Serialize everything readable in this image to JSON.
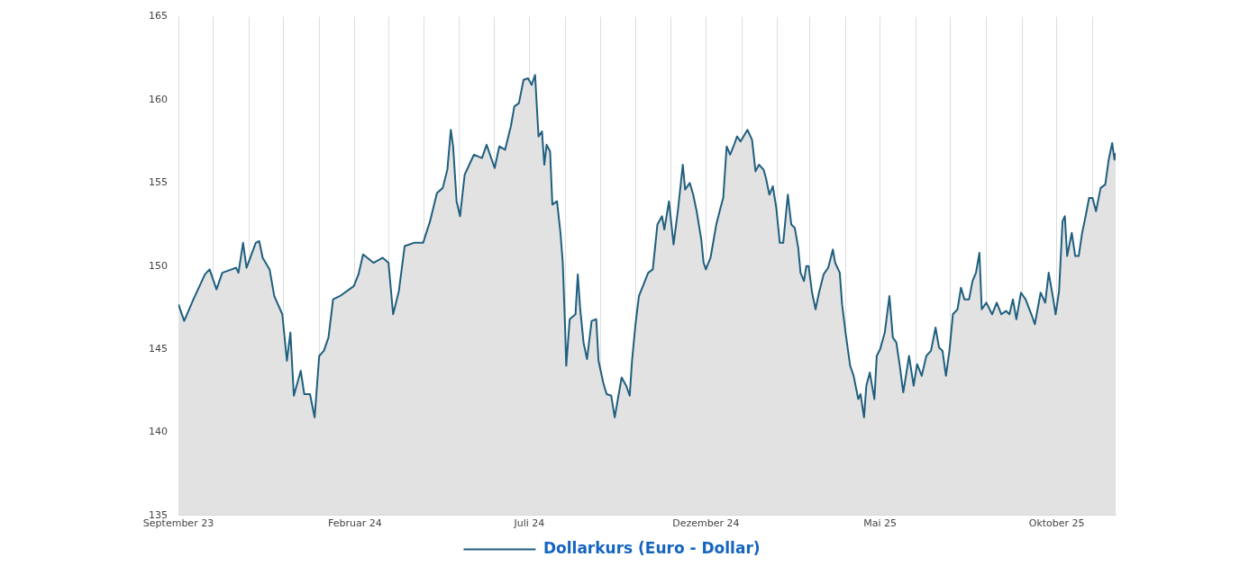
{
  "chart_data": {
    "type": "area",
    "x": [
      "2023-09-01",
      "2023-09-06",
      "2023-09-14",
      "2023-09-24",
      "2023-09-28",
      "2023-10-04",
      "2023-10-09",
      "2023-10-21",
      "2023-10-23",
      "2023-10-27",
      "2023-10-30",
      "2023-11-07",
      "2023-11-10",
      "2023-11-13",
      "2023-11-19",
      "2023-11-23",
      "2023-11-30",
      "2023-12-04",
      "2023-12-07",
      "2023-12-10",
      "2023-12-16",
      "2023-12-19",
      "2023-12-24",
      "2023-12-28",
      "2024-01-01",
      "2024-01-05",
      "2024-01-09",
      "2024-01-13",
      "2024-01-19",
      "2024-01-31",
      "2024-02-04",
      "2024-02-08",
      "2024-02-17",
      "2024-02-25",
      "2024-03-01",
      "2024-03-05",
      "2024-03-10",
      "2024-03-15",
      "2024-03-23",
      "2024-03-31",
      "2024-04-06",
      "2024-04-12",
      "2024-04-17",
      "2024-04-21",
      "2024-04-24",
      "2024-04-26",
      "2024-04-29",
      "2024-05-02",
      "2024-05-06",
      "2024-05-10",
      "2024-05-14",
      "2024-05-21",
      "2024-05-25",
      "2024-06-01",
      "2024-06-05",
      "2024-06-10",
      "2024-06-15",
      "2024-06-18",
      "2024-06-22",
      "2024-06-26",
      "2024-06-30",
      "2024-07-03",
      "2024-07-06",
      "2024-07-09",
      "2024-07-12",
      "2024-07-14",
      "2024-07-16",
      "2024-07-19",
      "2024-07-21",
      "2024-07-25",
      "2024-07-28",
      "2024-07-30",
      "2024-08-01",
      "2024-08-02",
      "2024-08-05",
      "2024-08-10",
      "2024-08-12",
      "2024-08-14",
      "2024-08-17",
      "2024-08-20",
      "2024-08-24",
      "2024-08-28",
      "2024-08-30",
      "2024-09-03",
      "2024-09-06",
      "2024-09-10",
      "2024-09-13",
      "2024-09-15",
      "2024-09-19",
      "2024-09-23",
      "2024-09-26",
      "2024-09-28",
      "2024-10-01",
      "2024-10-04",
      "2024-10-08",
      "2024-10-12",
      "2024-10-16",
      "2024-10-20",
      "2024-10-24",
      "2024-10-26",
      "2024-10-30",
      "2024-11-03",
      "2024-11-07",
      "2024-11-11",
      "2024-11-13",
      "2024-11-17",
      "2024-11-20",
      "2024-11-23",
      "2024-11-27",
      "2024-11-29",
      "2024-12-01",
      "2024-12-05",
      "2024-12-10",
      "2024-12-14",
      "2024-12-16",
      "2024-12-19",
      "2024-12-22",
      "2024-12-26",
      "2024-12-28",
      "2024-12-31",
      "2025-01-06",
      "2025-01-10",
      "2025-01-13",
      "2025-01-16",
      "2025-01-20",
      "2025-01-22",
      "2025-01-25",
      "2025-01-28",
      "2025-01-31",
      "2025-02-03",
      "2025-02-06",
      "2025-02-10",
      "2025-02-13",
      "2025-02-16",
      "2025-02-19",
      "2025-02-21",
      "2025-02-24",
      "2025-02-26",
      "2025-02-28",
      "2025-03-03",
      "2025-03-06",
      "2025-03-09",
      "2025-03-13",
      "2025-03-17",
      "2025-03-21",
      "2025-03-23",
      "2025-03-27",
      "2025-03-29",
      "2025-04-01",
      "2025-04-05",
      "2025-04-08",
      "2025-04-12",
      "2025-04-14",
      "2025-04-17",
      "2025-04-19",
      "2025-04-22",
      "2025-04-26",
      "2025-04-28",
      "2025-05-01",
      "2025-05-05",
      "2025-05-09",
      "2025-05-12",
      "2025-05-15",
      "2025-05-18",
      "2025-05-21",
      "2025-05-24",
      "2025-05-26",
      "2025-05-30",
      "2025-06-02",
      "2025-06-06",
      "2025-06-10",
      "2025-06-14",
      "2025-06-18",
      "2025-06-21",
      "2025-06-24",
      "2025-06-27",
      "2025-06-30",
      "2025-07-03",
      "2025-07-07",
      "2025-07-10",
      "2025-07-13",
      "2025-07-17",
      "2025-07-20",
      "2025-07-23",
      "2025-07-26",
      "2025-07-28",
      "2025-08-01",
      "2025-08-06",
      "2025-08-10",
      "2025-08-14",
      "2025-08-18",
      "2025-08-21",
      "2025-08-24",
      "2025-08-27",
      "2025-08-31",
      "2025-09-04",
      "2025-09-09",
      "2025-09-12",
      "2025-09-17",
      "2025-09-21",
      "2025-09-24",
      "2025-09-28",
      "2025-09-30",
      "2025-10-03",
      "2025-10-06",
      "2025-10-08",
      "2025-10-10",
      "2025-10-14",
      "2025-10-17",
      "2025-10-20",
      "2025-10-23",
      "2025-10-26",
      "2025-10-29",
      "2025-11-01",
      "2025-11-04",
      "2025-11-08",
      "2025-11-12",
      "2025-11-15",
      "2025-11-18",
      "2025-11-20",
      "2025-11-21"
    ],
    "series": [
      {
        "name": "Dollarkurs (Euro - Dollar)",
        "color": "#1f5f7f",
        "values": [
          147.7,
          146.7,
          148.0,
          149.5,
          149.8,
          148.6,
          149.6,
          149.9,
          149.6,
          151.4,
          149.9,
          151.4,
          151.5,
          150.5,
          149.8,
          148.2,
          147.1,
          144.3,
          146.0,
          142.2,
          143.7,
          142.3,
          142.3,
          140.9,
          144.6,
          144.9,
          145.7,
          148.0,
          148.2,
          148.8,
          149.5,
          150.7,
          150.2,
          150.5,
          150.2,
          147.1,
          148.5,
          151.2,
          151.4,
          151.4,
          152.7,
          154.4,
          154.7,
          155.8,
          158.2,
          157.2,
          153.9,
          153.0,
          155.5,
          156.1,
          156.7,
          156.5,
          157.3,
          155.9,
          157.2,
          157.0,
          158.4,
          159.6,
          159.8,
          161.2,
          161.3,
          160.9,
          161.5,
          157.8,
          158.1,
          156.1,
          157.3,
          156.9,
          153.7,
          153.9,
          152.0,
          150.2,
          146.3,
          144.0,
          146.8,
          147.1,
          149.5,
          147.5,
          145.4,
          144.4,
          146.7,
          146.8,
          144.3,
          143.0,
          142.3,
          142.2,
          140.9,
          141.7,
          143.3,
          142.8,
          142.2,
          144.3,
          146.5,
          148.2,
          148.9,
          149.6,
          149.8,
          152.5,
          153.0,
          152.2,
          153.9,
          151.3,
          153.5,
          156.1,
          154.6,
          155.0,
          154.3,
          153.3,
          151.6,
          150.2,
          149.8,
          150.5,
          152.5,
          153.6,
          154.1,
          157.2,
          156.7,
          157.4,
          157.8,
          157.5,
          158.2,
          157.6,
          155.7,
          156.1,
          155.8,
          155.3,
          154.3,
          154.8,
          153.5,
          151.4,
          151.4,
          154.3,
          152.5,
          152.3,
          151.1,
          149.6,
          149.1,
          150.0,
          150.0,
          148.4,
          147.4,
          148.4,
          149.5,
          149.9,
          151.0,
          150.2,
          149.6,
          147.7,
          146.0,
          144.0,
          143.4,
          142.0,
          142.3,
          140.9,
          142.8,
          143.6,
          142.0,
          144.6,
          145.0,
          146.0,
          148.2,
          145.7,
          145.4,
          144.0,
          142.4,
          143.7,
          144.6,
          142.8,
          144.1,
          143.4,
          144.6,
          144.9,
          146.3,
          145.1,
          144.9,
          143.4,
          144.9,
          147.1,
          147.4,
          148.7,
          148.0,
          148.0,
          149.1,
          149.6,
          150.8,
          147.4,
          147.8,
          147.1,
          147.8,
          147.1,
          147.3,
          147.1,
          148.0,
          146.8,
          148.4,
          148.0,
          147.1,
          146.5,
          148.4,
          147.8,
          149.6,
          148.0,
          147.1,
          148.5,
          152.7,
          153.0,
          150.6,
          152.0,
          150.6,
          150.6,
          152.0,
          153.0,
          154.1,
          154.1,
          153.3,
          154.7,
          154.9,
          156.4,
          157.4,
          156.4,
          156.8
        ]
      }
    ],
    "xlim": [
      "2023-09-01",
      "2025-11-21"
    ],
    "xticks": [
      {
        "value": "2023-09-01",
        "label": "September 23"
      },
      {
        "value": "2023-10-01",
        "label": null
      },
      {
        "value": "2023-11-01",
        "label": null
      },
      {
        "value": "2023-12-01",
        "label": null
      },
      {
        "value": "2024-01-01",
        "label": null
      },
      {
        "value": "2024-02-01",
        "label": "Februar 24"
      },
      {
        "value": "2024-03-01",
        "label": null
      },
      {
        "value": "2024-04-01",
        "label": null
      },
      {
        "value": "2024-05-01",
        "label": null
      },
      {
        "value": "2024-06-01",
        "label": null
      },
      {
        "value": "2024-07-01",
        "label": "Juli 24"
      },
      {
        "value": "2024-08-01",
        "label": null
      },
      {
        "value": "2024-09-01",
        "label": null
      },
      {
        "value": "2024-10-01",
        "label": null
      },
      {
        "value": "2024-11-01",
        "label": null
      },
      {
        "value": "2024-12-01",
        "label": "Dezember 24"
      },
      {
        "value": "2025-01-01",
        "label": null
      },
      {
        "value": "2025-02-01",
        "label": null
      },
      {
        "value": "2025-03-01",
        "label": null
      },
      {
        "value": "2025-04-01",
        "label": null
      },
      {
        "value": "2025-05-01",
        "label": "Mai 25"
      },
      {
        "value": "2025-06-01",
        "label": null
      },
      {
        "value": "2025-07-01",
        "label": null
      },
      {
        "value": "2025-08-01",
        "label": null
      },
      {
        "value": "2025-09-01",
        "label": null
      },
      {
        "value": "2025-10-01",
        "label": "Oktober 25"
      },
      {
        "value": "2025-11-01",
        "label": null
      }
    ],
    "ylim": [
      135,
      165
    ],
    "yticks": [
      135,
      140,
      145,
      150,
      155,
      160,
      165
    ],
    "grid": "x",
    "legend": "bottom",
    "marker": "none",
    "line_style": "solid"
  }
}
